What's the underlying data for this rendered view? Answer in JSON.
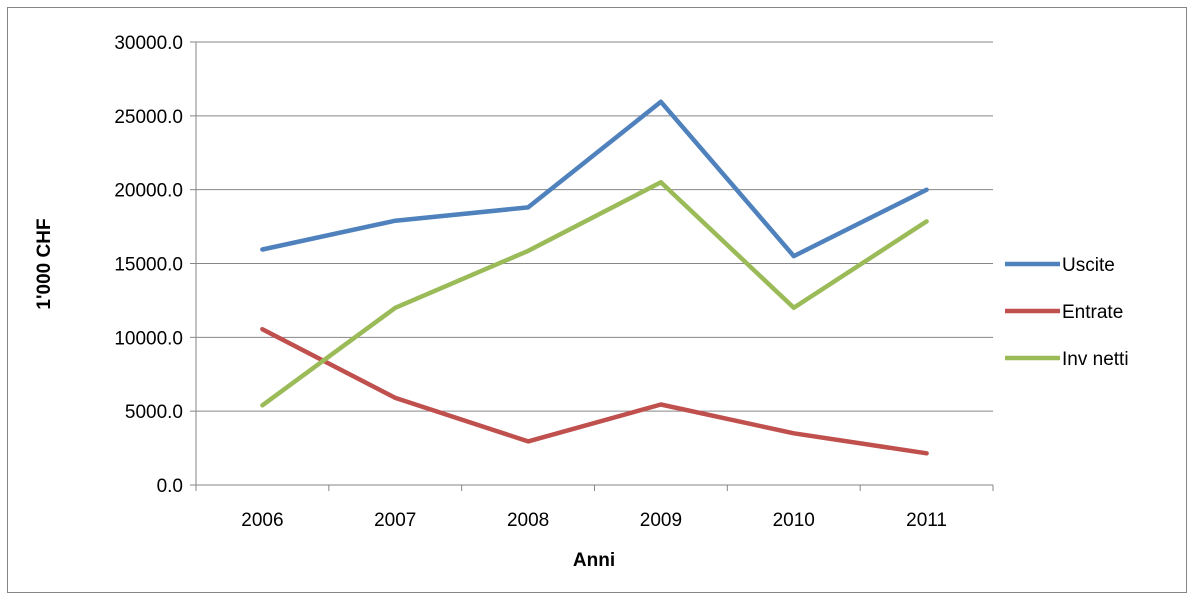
{
  "chart_data": {
    "type": "line",
    "title": "",
    "xlabel": "Anni",
    "ylabel": "1'000 CHF",
    "categories": [
      "2006",
      "2007",
      "2008",
      "2009",
      "2010",
      "2011"
    ],
    "ylim": [
      0,
      30000
    ],
    "yticks": [
      0,
      5000,
      10000,
      15000,
      20000,
      25000,
      30000
    ],
    "ytick_labels": [
      "0.0",
      "5000.0",
      "10000.0",
      "15000.0",
      "20000.0",
      "25000.0",
      "30000.0"
    ],
    "grid": "horizontal major gridlines",
    "legend_position": "right",
    "series": [
      {
        "name": "Uscite",
        "color": "#4F81BD",
        "values": [
          15950,
          17900,
          18800,
          25950,
          15500,
          20000
        ]
      },
      {
        "name": "Entrate",
        "color": "#C0504D",
        "values": [
          10550,
          5900,
          2950,
          5450,
          3500,
          2150
        ]
      },
      {
        "name": "Inv netti",
        "color": "#9BBB59",
        "values": [
          5400,
          12000,
          15850,
          20500,
          12000,
          17850
        ]
      }
    ]
  }
}
